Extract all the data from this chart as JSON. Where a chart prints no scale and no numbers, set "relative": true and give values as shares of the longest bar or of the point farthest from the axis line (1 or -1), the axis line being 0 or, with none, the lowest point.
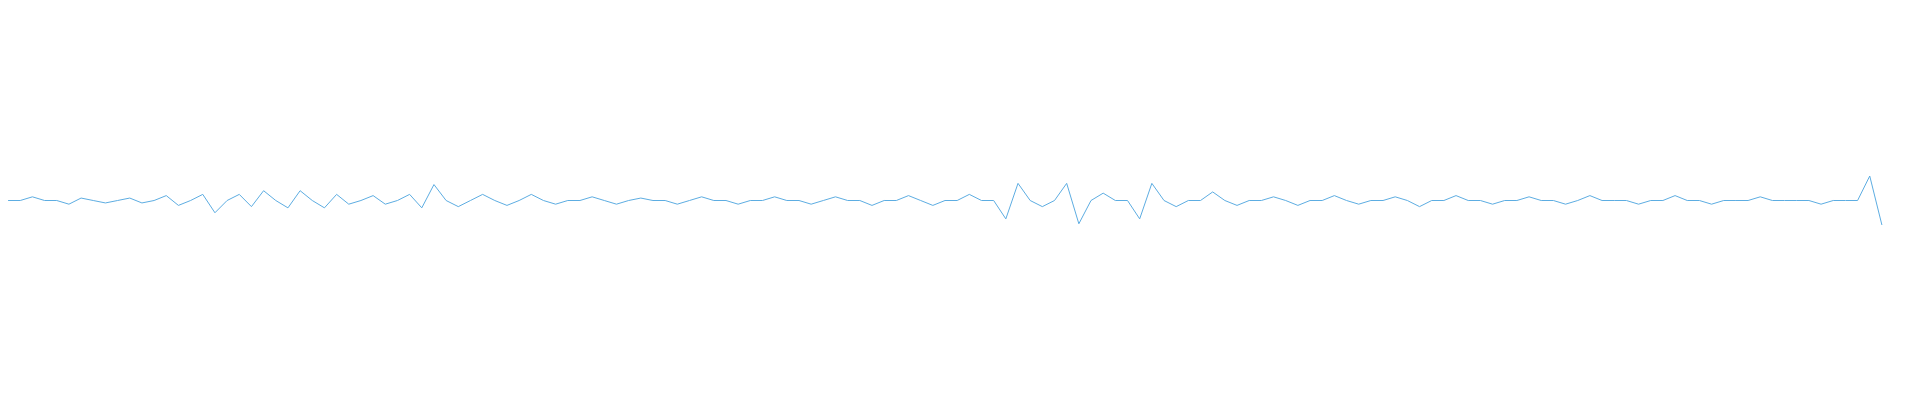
{
  "chart_data": {
    "type": "line",
    "relative": true,
    "color": "#5dade2",
    "categories": [
      null,
      null,
      null,
      null,
      null,
      null,
      null,
      null,
      null,
      null,
      null,
      null,
      null,
      null,
      null,
      null,
      null,
      null,
      null,
      null,
      null,
      null,
      null,
      null,
      null,
      null,
      null,
      null,
      null,
      null,
      null,
      null,
      null,
      null,
      null,
      null,
      null,
      null,
      null,
      null,
      null,
      null,
      null,
      null,
      null,
      null,
      null,
      null,
      null,
      null,
      null,
      null,
      null,
      null,
      null,
      null,
      null,
      null,
      null,
      null,
      null,
      null,
      null,
      null,
      null,
      null,
      null,
      null,
      null,
      null,
      null,
      null,
      null,
      null,
      null,
      null,
      null,
      null,
      null,
      null,
      null,
      null,
      null,
      null,
      null,
      null,
      null,
      null,
      null,
      null,
      null,
      null,
      null,
      null,
      null,
      null,
      null,
      null,
      null,
      null,
      null,
      null,
      null,
      null,
      null,
      null,
      null,
      null,
      null,
      null,
      null,
      null,
      null,
      null,
      null,
      null,
      null,
      null,
      null,
      null,
      null,
      null,
      null,
      null,
      null,
      null,
      null,
      null,
      null,
      null,
      null,
      null,
      null,
      null,
      null,
      null,
      null,
      null,
      null,
      null,
      null,
      null,
      null,
      null,
      null,
      null,
      null,
      null,
      null,
      null,
      null,
      null,
      null,
      null,
      null
    ],
    "values": [
      0.5,
      0.5,
      0.575,
      0.5,
      0.5,
      0.425,
      0.55,
      0.5,
      0.45,
      0.5,
      0.55,
      0.45,
      0.5,
      0.6,
      0.4,
      0.5,
      0.625,
      0.25,
      0.5,
      0.625,
      0.375,
      0.7,
      0.5,
      0.35,
      0.7,
      0.5,
      0.35,
      0.625,
      0.425,
      0.5,
      0.6,
      0.425,
      0.5,
      0.625,
      0.35,
      0.825,
      0.5,
      0.375,
      0.5,
      0.625,
      0.5,
      0.4,
      0.5,
      0.625,
      0.5,
      0.425,
      0.5,
      0.5,
      0.575,
      0.5,
      0.425,
      0.5,
      0.55,
      0.5,
      0.5,
      0.425,
      0.5,
      0.575,
      0.5,
      0.5,
      0.425,
      0.5,
      0.5,
      0.575,
      0.5,
      0.5,
      0.425,
      0.5,
      0.575,
      0.5,
      0.5,
      0.4,
      0.5,
      0.5,
      0.6,
      0.5,
      0.4,
      0.5,
      0.5,
      0.625,
      0.5,
      0.5,
      0.125,
      0.85,
      0.5,
      0.375,
      0.5,
      0.85,
      0.025,
      0.5,
      0.65,
      0.5,
      0.5,
      0.125,
      0.85,
      0.5,
      0.375,
      0.5,
      0.5,
      0.675,
      0.5,
      0.4,
      0.5,
      0.5,
      0.575,
      0.5,
      0.4,
      0.5,
      0.5,
      0.6,
      0.5,
      0.425,
      0.5,
      0.5,
      0.575,
      0.5,
      0.375,
      0.5,
      0.5,
      0.6,
      0.5,
      0.5,
      0.425,
      0.5,
      0.5,
      0.575,
      0.5,
      0.5,
      0.425,
      0.5,
      0.6,
      0.5,
      0.5,
      0.5,
      0.425,
      0.5,
      0.5,
      0.6,
      0.5,
      0.5,
      0.425,
      0.5,
      0.5,
      0.5,
      0.575,
      0.5,
      0.5,
      0.5,
      0.5,
      0.425,
      0.5,
      0.5,
      0.5,
      1,
      0
    ]
  }
}
